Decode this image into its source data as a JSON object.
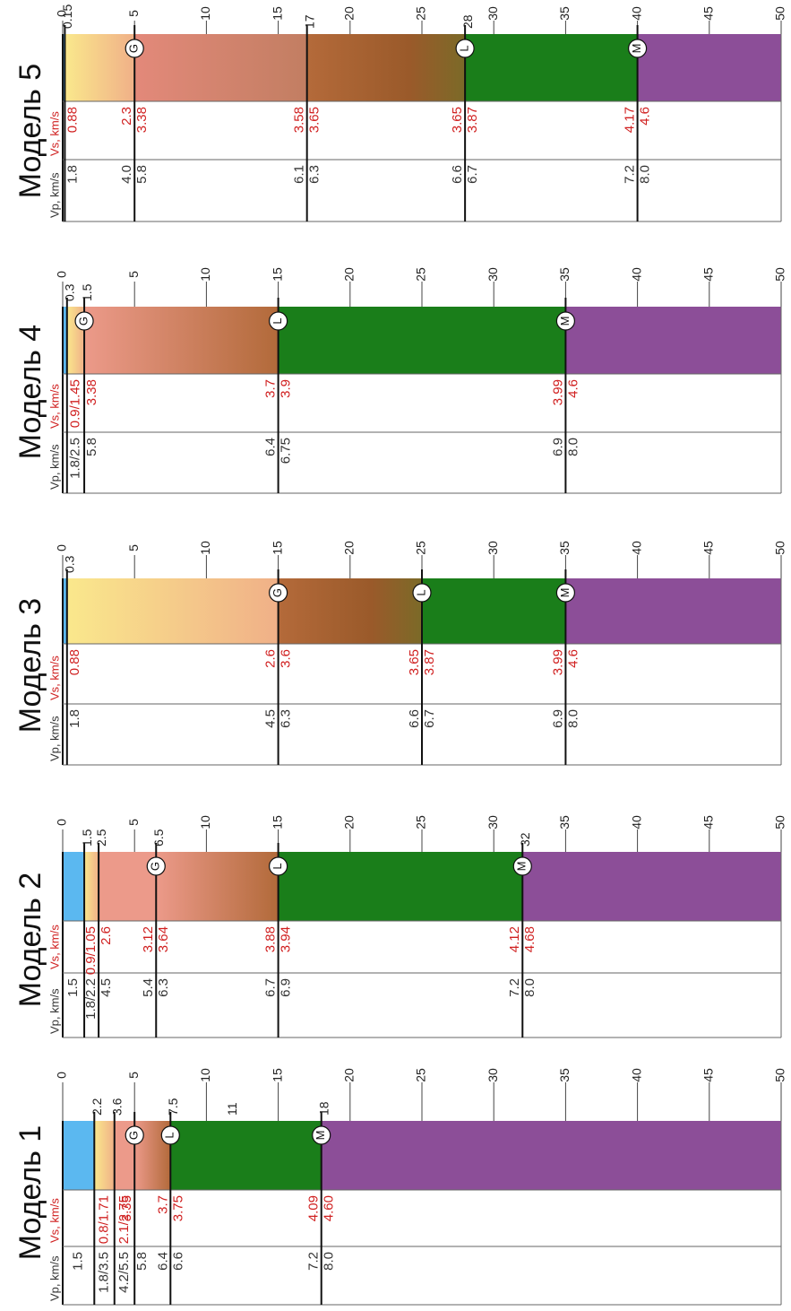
{
  "depth_axis": {
    "ticks": [
      "0",
      "5",
      "10",
      "15",
      "20",
      "25",
      "30",
      "35",
      "40",
      "45",
      "50"
    ]
  },
  "colors": {
    "water": "#5bb8f0",
    "sediment_top": "#fae88c",
    "sediment_bottom": "#f0b088",
    "granite_top": "#ec9a8a",
    "granite_bottom": "#b26a3a",
    "transition": "#7b6a28",
    "basalt": "#1a7e1a",
    "mantle": "#8c4e98",
    "vs_text": "#d02020",
    "vp_text": "#333333"
  },
  "models": [
    {
      "title": "Модель 1",
      "header_vp": "Vp, km/s",
      "header_vs": "Vs, km/s",
      "layers": [
        {
          "top": 0,
          "bottom": 2.2,
          "kind": "water"
        },
        {
          "top": 2.2,
          "bottom": 3.6,
          "kind": "sediment"
        },
        {
          "top": 3.6,
          "bottom": 5,
          "kind": "granite"
        },
        {
          "top": 5,
          "bottom": 7.5,
          "kind": "granite_grad"
        },
        {
          "top": 7.5,
          "bottom": 18,
          "kind": "basalt"
        },
        {
          "top": 18,
          "bottom": 50,
          "kind": "mantle"
        }
      ],
      "boundaries": [
        {
          "depth": 2.2,
          "label": "2.2"
        },
        {
          "depth": 3.6,
          "label": "3.6"
        },
        {
          "depth": 5,
          "label": "",
          "marker": "G"
        },
        {
          "depth": 7.5,
          "label": "7.5",
          "marker": "L"
        },
        {
          "depth": 18,
          "label": "18",
          "marker": "M"
        }
      ],
      "extra_labels": [
        {
          "depth": 11,
          "label": "11"
        }
      ],
      "vs": [
        {
          "depth": 1.1,
          "text": "",
          "align": "center"
        },
        {
          "depth": 2.9,
          "text": "0.8/1.71",
          "align": "center"
        },
        {
          "depth": 4.3,
          "text": "2.1/2.75",
          "align": "center"
        },
        {
          "depth": 5,
          "text": "3.35",
          "align": "before"
        },
        {
          "depth": 7.5,
          "text": "3.7",
          "align": "before"
        },
        {
          "depth": 7.5,
          "text": "3.75",
          "align": "after"
        },
        {
          "depth": 18,
          "text": "4.09",
          "align": "before"
        },
        {
          "depth": 18,
          "text": "4.60",
          "align": "after"
        }
      ],
      "vp": [
        {
          "depth": 1.1,
          "text": "1.5",
          "align": "center"
        },
        {
          "depth": 2.9,
          "text": "1.8/3.5",
          "align": "center"
        },
        {
          "depth": 4.3,
          "text": "4.2/5.5",
          "align": "center"
        },
        {
          "depth": 5,
          "text": "5.8",
          "align": "after"
        },
        {
          "depth": 7.5,
          "text": "6.4",
          "align": "before"
        },
        {
          "depth": 7.5,
          "text": "6.6",
          "align": "after"
        },
        {
          "depth": 18,
          "text": "7.2",
          "align": "before"
        },
        {
          "depth": 18,
          "text": "8.0",
          "align": "after"
        }
      ]
    },
    {
      "title": "Модель 2",
      "header_vp": "Vp, km/s",
      "header_vs": "Vs, km/s",
      "layers": [
        {
          "top": 0,
          "bottom": 1.5,
          "kind": "water"
        },
        {
          "top": 1.5,
          "bottom": 2.5,
          "kind": "sediment"
        },
        {
          "top": 2.5,
          "bottom": 6.5,
          "kind": "granite"
        },
        {
          "top": 6.5,
          "bottom": 15,
          "kind": "granite_grad"
        },
        {
          "top": 15,
          "bottom": 32,
          "kind": "basalt"
        },
        {
          "top": 32,
          "bottom": 50,
          "kind": "mantle"
        }
      ],
      "boundaries": [
        {
          "depth": 1.5,
          "label": "1.5"
        },
        {
          "depth": 2.5,
          "label": "2.5"
        },
        {
          "depth": 6.5,
          "label": "6.5",
          "marker": "G"
        },
        {
          "depth": 15,
          "label": "",
          "marker": "L"
        },
        {
          "depth": 32,
          "label": "32",
          "marker": "M"
        }
      ],
      "extra_labels": [],
      "vs": [
        {
          "depth": 2.0,
          "text": "0.9/1.05",
          "align": "center"
        },
        {
          "depth": 2.5,
          "text": "2.6",
          "align": "after"
        },
        {
          "depth": 6.5,
          "text": "3.12",
          "align": "before"
        },
        {
          "depth": 6.5,
          "text": "3.64",
          "align": "after"
        },
        {
          "depth": 15,
          "text": "3.88",
          "align": "before"
        },
        {
          "depth": 15,
          "text": "3.94",
          "align": "after"
        },
        {
          "depth": 32,
          "text": "4.12",
          "align": "before"
        },
        {
          "depth": 32,
          "text": "4.68",
          "align": "after"
        }
      ],
      "vp": [
        {
          "depth": 0.75,
          "text": "1.5",
          "align": "center"
        },
        {
          "depth": 2.0,
          "text": "1.8/2.2",
          "align": "center"
        },
        {
          "depth": 2.5,
          "text": "4.5",
          "align": "after"
        },
        {
          "depth": 6.5,
          "text": "5.4",
          "align": "before"
        },
        {
          "depth": 6.5,
          "text": "6.3",
          "align": "after"
        },
        {
          "depth": 15,
          "text": "6.7",
          "align": "before"
        },
        {
          "depth": 15,
          "text": "6.9",
          "align": "after"
        },
        {
          "depth": 32,
          "text": "7.2",
          "align": "before"
        },
        {
          "depth": 32,
          "text": "8.0",
          "align": "after"
        }
      ]
    },
    {
      "title": "Модель 3",
      "header_vp": "Vp, km/s",
      "header_vs": "Vs, km/s",
      "layers": [
        {
          "top": 0,
          "bottom": 0.3,
          "kind": "water"
        },
        {
          "top": 0.3,
          "bottom": 15,
          "kind": "sediment"
        },
        {
          "top": 15,
          "bottom": 25,
          "kind": "granite_grad_t"
        },
        {
          "top": 25,
          "bottom": 35,
          "kind": "basalt"
        },
        {
          "top": 35,
          "bottom": 50,
          "kind": "mantle"
        }
      ],
      "boundaries": [
        {
          "depth": 0.3,
          "label": "0.3"
        },
        {
          "depth": 15,
          "label": "",
          "marker": "G"
        },
        {
          "depth": 25,
          "label": "",
          "marker": "L"
        },
        {
          "depth": 35,
          "label": "",
          "marker": "M"
        }
      ],
      "extra_labels": [],
      "vs": [
        {
          "depth": 0.3,
          "text": "0.88",
          "align": "after"
        },
        {
          "depth": 15,
          "text": "2.6",
          "align": "before"
        },
        {
          "depth": 15,
          "text": "3.6",
          "align": "after"
        },
        {
          "depth": 25,
          "text": "3.65",
          "align": "before"
        },
        {
          "depth": 25,
          "text": "3.87",
          "align": "after"
        },
        {
          "depth": 35,
          "text": "3.99",
          "align": "before"
        },
        {
          "depth": 35,
          "text": "4.6",
          "align": "after"
        }
      ],
      "vp": [
        {
          "depth": 0.3,
          "text": "1.8",
          "align": "after"
        },
        {
          "depth": 15,
          "text": "4.5",
          "align": "before"
        },
        {
          "depth": 15,
          "text": "6.3",
          "align": "after"
        },
        {
          "depth": 25,
          "text": "6.6",
          "align": "before"
        },
        {
          "depth": 25,
          "text": "6.7",
          "align": "after"
        },
        {
          "depth": 35,
          "text": "6.9",
          "align": "before"
        },
        {
          "depth": 35,
          "text": "8.0",
          "align": "after"
        }
      ]
    },
    {
      "title": "Модель 4",
      "header_vp": "Vp, km/s",
      "header_vs": "Vs, km/s",
      "layers": [
        {
          "top": 0,
          "bottom": 0.3,
          "kind": "water"
        },
        {
          "top": 0.3,
          "bottom": 1.5,
          "kind": "sediment"
        },
        {
          "top": 1.5,
          "bottom": 15,
          "kind": "granite_grad"
        },
        {
          "top": 15,
          "bottom": 35,
          "kind": "basalt"
        },
        {
          "top": 35,
          "bottom": 50,
          "kind": "mantle"
        }
      ],
      "boundaries": [
        {
          "depth": 0.3,
          "label": "0.3"
        },
        {
          "depth": 1.5,
          "label": "1.5",
          "marker": "G"
        },
        {
          "depth": 15,
          "label": "",
          "marker": "L"
        },
        {
          "depth": 35,
          "label": "",
          "marker": "M"
        }
      ],
      "extra_labels": [],
      "vs": [
        {
          "depth": 0.9,
          "text": "0.9/1.45",
          "align": "center"
        },
        {
          "depth": 1.5,
          "text": "3.38",
          "align": "after"
        },
        {
          "depth": 15,
          "text": "3.7",
          "align": "before"
        },
        {
          "depth": 15,
          "text": "3.9",
          "align": "after"
        },
        {
          "depth": 35,
          "text": "3.99",
          "align": "before"
        },
        {
          "depth": 35,
          "text": "4.6",
          "align": "after"
        }
      ],
      "vp": [
        {
          "depth": 0.9,
          "text": "1.8/2.5",
          "align": "center"
        },
        {
          "depth": 1.5,
          "text": "5.8",
          "align": "after"
        },
        {
          "depth": 15,
          "text": "6.4",
          "align": "before"
        },
        {
          "depth": 15,
          "text": "6.75",
          "align": "after"
        },
        {
          "depth": 35,
          "text": "6.9",
          "align": "before"
        },
        {
          "depth": 35,
          "text": "8.0",
          "align": "after"
        }
      ]
    },
    {
      "title": "Модель 5",
      "header_vp": "Vp, km/s",
      "header_vs": "Vs, km/s",
      "layers": [
        {
          "top": 0,
          "bottom": 0.15,
          "kind": "water"
        },
        {
          "top": 0.15,
          "bottom": 5,
          "kind": "sediment"
        },
        {
          "top": 5,
          "bottom": 17,
          "kind": "granite_grad_a"
        },
        {
          "top": 17,
          "bottom": 28,
          "kind": "granite_grad_t"
        },
        {
          "top": 28,
          "bottom": 40,
          "kind": "basalt"
        },
        {
          "top": 40,
          "bottom": 50,
          "kind": "mantle"
        }
      ],
      "boundaries": [
        {
          "depth": 0.15,
          "label": "0.15"
        },
        {
          "depth": 5,
          "label": "",
          "marker": "G"
        },
        {
          "depth": 17,
          "label": "17"
        },
        {
          "depth": 28,
          "label": "28",
          "marker": "L"
        },
        {
          "depth": 40,
          "label": "",
          "marker": "M"
        }
      ],
      "extra_labels": [],
      "vs": [
        {
          "depth": 0.15,
          "text": "0.88",
          "align": "after"
        },
        {
          "depth": 5,
          "text": "2.3",
          "align": "before"
        },
        {
          "depth": 5,
          "text": "3.38",
          "align": "after"
        },
        {
          "depth": 17,
          "text": "3.58",
          "align": "before"
        },
        {
          "depth": 17,
          "text": "3.65",
          "align": "after"
        },
        {
          "depth": 28,
          "text": "3.65",
          "align": "before"
        },
        {
          "depth": 28,
          "text": "3.87",
          "align": "after"
        },
        {
          "depth": 40,
          "text": "4.17",
          "align": "before"
        },
        {
          "depth": 40,
          "text": "4.6",
          "align": "after"
        }
      ],
      "vp": [
        {
          "depth": 0.15,
          "text": "1.8",
          "align": "after"
        },
        {
          "depth": 5,
          "text": "4.0",
          "align": "before"
        },
        {
          "depth": 5,
          "text": "5.8",
          "align": "after"
        },
        {
          "depth": 17,
          "text": "6.1",
          "align": "before"
        },
        {
          "depth": 17,
          "text": "6.3",
          "align": "after"
        },
        {
          "depth": 28,
          "text": "6.6",
          "align": "before"
        },
        {
          "depth": 28,
          "text": "6.7",
          "align": "after"
        },
        {
          "depth": 40,
          "text": "7.2",
          "align": "before"
        },
        {
          "depth": 40,
          "text": "8.0",
          "align": "after"
        }
      ]
    }
  ]
}
